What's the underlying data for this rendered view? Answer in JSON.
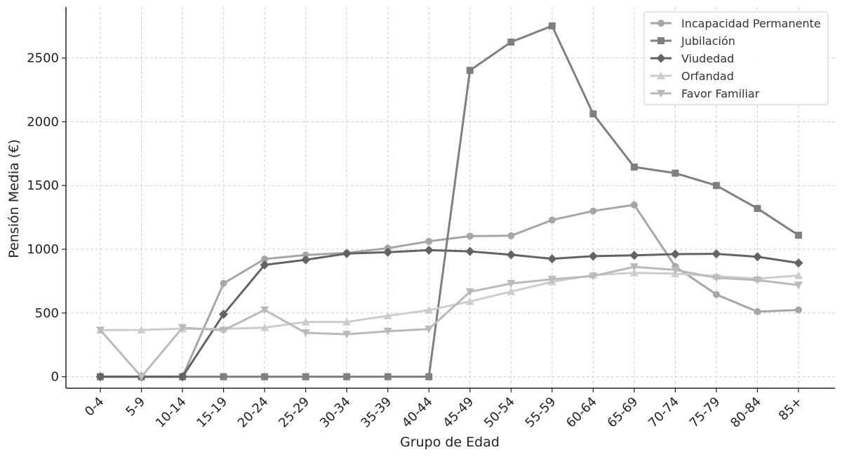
{
  "chart_data": {
    "type": "line",
    "title": "",
    "xlabel": "Grupo de Edad",
    "ylabel": "Pensión Media (€)",
    "categories": [
      "0-4",
      "5-9",
      "10-14",
      "15-19",
      "20-24",
      "25-29",
      "30-34",
      "35-39",
      "40-44",
      "45-49",
      "50-54",
      "55-59",
      "60-64",
      "65-69",
      "70-74",
      "75-79",
      "80-84",
      "85+"
    ],
    "ylim": [
      -90,
      2900
    ],
    "yticks": [
      0,
      500,
      1000,
      1500,
      2000,
      2500
    ],
    "grid": true,
    "legend_position": "top-right",
    "series": [
      {
        "name": "Incapacidad Permanente",
        "marker": "circle",
        "color": "#a6a6a6",
        "values": [
          0,
          0,
          0,
          732,
          923,
          955,
          972,
          1008,
          1062,
          1103,
          1106,
          1229,
          1300,
          1348,
          864,
          645,
          510,
          524
        ]
      },
      {
        "name": "Jubilación",
        "marker": "square",
        "color": "#7f7f7f",
        "values": [
          0,
          0,
          0,
          0,
          0,
          0,
          0,
          0,
          0,
          2403,
          2625,
          2752,
          2062,
          1645,
          1597,
          1500,
          1320,
          1110
        ]
      },
      {
        "name": "Viudedad",
        "marker": "diamond",
        "color": "#636363",
        "values": [
          0,
          0,
          0,
          490,
          877,
          917,
          966,
          977,
          993,
          983,
          957,
          925,
          946,
          952,
          962,
          964,
          941,
          892
        ]
      },
      {
        "name": "Orfandad",
        "marker": "triangle-up",
        "color": "#cdcdcd",
        "values": [
          366,
          367,
          377,
          375,
          385,
          430,
          430,
          478,
          522,
          590,
          668,
          745,
          797,
          815,
          808,
          789,
          770,
          794
        ]
      },
      {
        "name": "Favor Familiar",
        "marker": "triangle-down",
        "color": "#bababa",
        "values": [
          366,
          0,
          385,
          364,
          524,
          344,
          333,
          357,
          374,
          666,
          731,
          765,
          790,
          862,
          838,
          776,
          758,
          719
        ]
      }
    ]
  }
}
